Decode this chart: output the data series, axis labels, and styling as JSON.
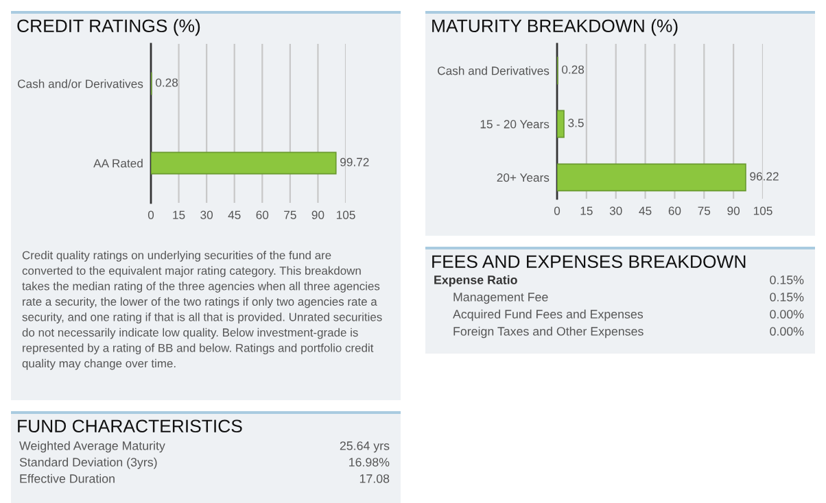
{
  "chart_data": [
    {
      "type": "bar",
      "orientation": "horizontal",
      "title": "CREDIT RATINGS (%)",
      "categories": [
        "Cash and/or Derivatives",
        "AA Rated"
      ],
      "values": [
        0.28,
        99.72
      ],
      "color": "#8cc63e",
      "xlim": [
        0,
        105
      ],
      "xticks": [
        0,
        15,
        30,
        45,
        60,
        75,
        90,
        105
      ],
      "grid": "x",
      "data_labels": true,
      "legend": false,
      "annotations": [
        "Credit quality ratings on underlying securities of the fund are converted to the equivalent major rating category. This breakdown takes the median rating of the three agencies when all three agencies rate a security, the lower of the two ratings if only two agencies rate a security, and one rating if that is all that is provided. Unrated securities do not necessarily indicate low quality. Below investment-grade is represented by a rating of BB and below. Ratings and portfolio credit quality may change over time."
      ]
    },
    {
      "type": "bar",
      "orientation": "horizontal",
      "title": "MATURITY BREAKDOWN (%)",
      "categories": [
        "Cash and Derivatives",
        "15 - 20 Years",
        "20+ Years"
      ],
      "values": [
        0.28,
        3.5,
        96.22
      ],
      "color": "#8cc63e",
      "xlim": [
        0,
        105
      ],
      "xticks": [
        0,
        15,
        30,
        45,
        60,
        75,
        90,
        105
      ],
      "grid": "x",
      "data_labels": true,
      "legend": false
    },
    {
      "type": "other",
      "title": "FEES AND EXPENSES BREAKDOWN",
      "annotations": [
        "Expense Ratio",
        "0.15%",
        "Management Fee",
        "0.15%",
        "Acquired Fund Fees and Expenses",
        "0.00%",
        "Foreign Taxes and Other Expenses",
        "0.00%"
      ]
    },
    {
      "type": "other",
      "title": "FUND CHARACTERISTICS",
      "annotations": [
        "Weighted Average Maturity",
        "25.64 yrs",
        "Standard Deviation (3yrs)",
        "16.98%",
        "Effective Duration",
        "17.08"
      ]
    }
  ]
}
